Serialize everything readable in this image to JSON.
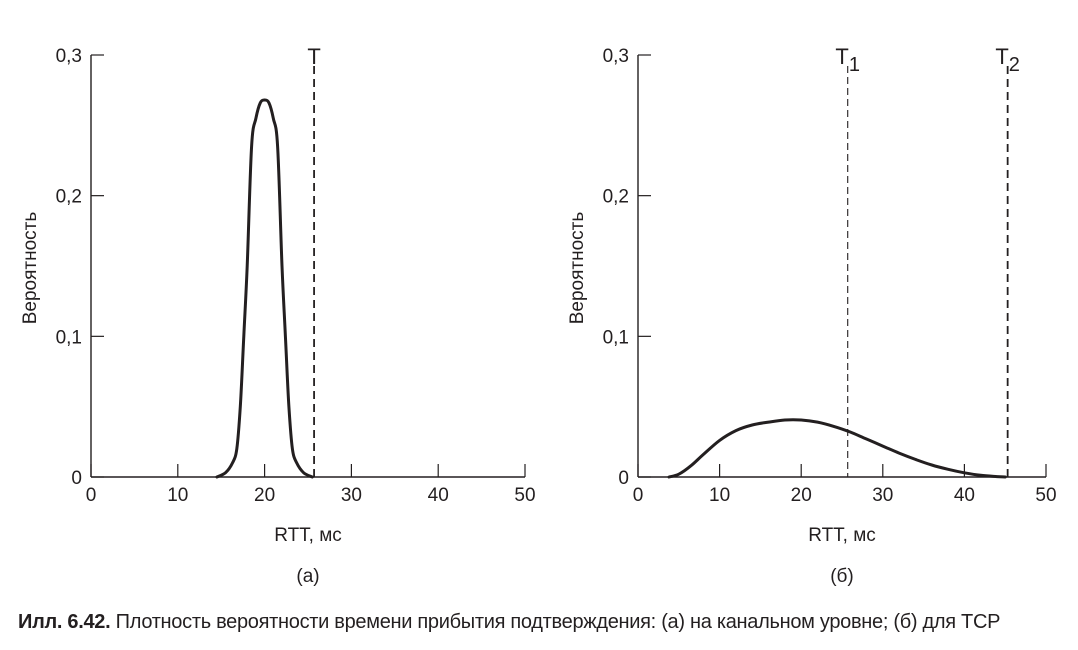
{
  "chart_data": [
    {
      "type": "line",
      "panel_label": "(а)",
      "xlabel": "RTT, мс",
      "ylabel": "Вероятность",
      "xlim": [
        0,
        50
      ],
      "ylim": [
        0,
        0.3
      ],
      "x_ticks": [
        0,
        10,
        20,
        30,
        40,
        50
      ],
      "x_tick_labels": [
        "0",
        "10",
        "20",
        "30",
        "40",
        "50"
      ],
      "y_ticks": [
        0,
        0.1,
        0.2,
        0.3
      ],
      "y_tick_labels": [
        "0",
        "0,1",
        "0,2",
        "0,3"
      ],
      "grid": false,
      "series": [
        {
          "x": [
            14.5,
            15.5,
            16.3,
            16.8,
            17.2,
            17.6,
            18.0,
            18.5,
            19.0,
            19.5,
            20.0,
            20.5,
            21.0,
            21.5,
            22.0,
            22.4,
            22.8,
            23.2,
            23.7,
            24.5,
            25.5
          ],
          "y": [
            0.0,
            0.003,
            0.01,
            0.02,
            0.05,
            0.1,
            0.15,
            0.235,
            0.255,
            0.266,
            0.268,
            0.266,
            0.255,
            0.235,
            0.15,
            0.1,
            0.05,
            0.02,
            0.01,
            0.003,
            0.0
          ]
        }
      ],
      "markers": [
        {
          "label": "T",
          "x": 25.7,
          "style": "dashed"
        }
      ]
    },
    {
      "type": "line",
      "panel_label": "(б)",
      "xlabel": "RTT, мс",
      "ylabel": "Вероятность",
      "xlim": [
        0,
        50
      ],
      "ylim": [
        0,
        0.3
      ],
      "x_ticks": [
        0,
        10,
        20,
        30,
        40,
        50
      ],
      "x_tick_labels": [
        "0",
        "10",
        "20",
        "30",
        "40",
        "50"
      ],
      "y_ticks": [
        0,
        0.1,
        0.2,
        0.3
      ],
      "y_tick_labels": [
        "0",
        "0,1",
        "0,2",
        "0,3"
      ],
      "grid": false,
      "series": [
        {
          "x": [
            3.8,
            5.0,
            6.5,
            8.0,
            10.0,
            12.0,
            14.0,
            16.0,
            18.0,
            20.0,
            22.0,
            24.0,
            26.0,
            28.0,
            30.0,
            32.0,
            34.0,
            36.0,
            38.0,
            40.0,
            42.0,
            44.0,
            45.0
          ],
          "y": [
            0.0,
            0.002,
            0.008,
            0.016,
            0.026,
            0.033,
            0.037,
            0.039,
            0.0405,
            0.0405,
            0.039,
            0.036,
            0.032,
            0.027,
            0.022,
            0.017,
            0.0125,
            0.0085,
            0.0055,
            0.003,
            0.0012,
            0.0003,
            0.0
          ]
        }
      ],
      "markers": [
        {
          "label": "T",
          "subscript": "1",
          "x": 25.7,
          "style": "dashed-thin"
        },
        {
          "label": "T",
          "subscript": "2",
          "x": 45.3,
          "style": "dashed"
        }
      ]
    }
  ],
  "caption": {
    "prefix": "Илл. 6.42.",
    "text": " Плотность вероятности времени прибытия подтверждения: (а) на канальном уровне; (б) для TCP"
  }
}
